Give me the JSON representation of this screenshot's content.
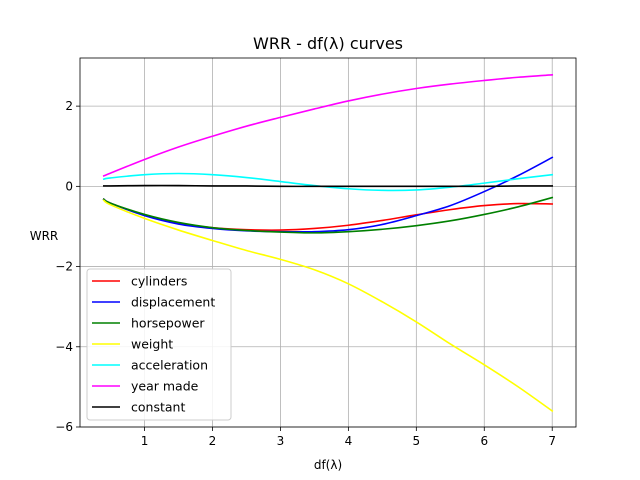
{
  "chart_data": {
    "type": "line",
    "title": "WRR - df(λ) curves",
    "xlabel": "df(λ)",
    "ylabel": "WRR",
    "xlim": [
      0.05,
      7.35
    ],
    "ylim": [
      -6.0,
      3.2
    ],
    "xticks": [
      1,
      2,
      3,
      4,
      5,
      6,
      7
    ],
    "yticks": [
      -6,
      -4,
      -2,
      0,
      2
    ],
    "grid": true,
    "legend_position": "lower-left",
    "x": [
      0.4,
      0.5,
      1.0,
      1.5,
      2.0,
      2.5,
      3.0,
      3.5,
      4.0,
      4.5,
      5.0,
      5.5,
      6.0,
      6.5,
      7.0
    ],
    "series": [
      {
        "name": "cylinders",
        "color": "#ff0000",
        "values": [
          -0.32,
          -0.42,
          -0.72,
          -0.92,
          -1.03,
          -1.08,
          -1.09,
          -1.05,
          -0.97,
          -0.85,
          -0.71,
          -0.58,
          -0.48,
          -0.43,
          -0.44
        ]
      },
      {
        "name": "displacement",
        "color": "#0000ff",
        "values": [
          -0.32,
          -0.42,
          -0.73,
          -0.94,
          -1.05,
          -1.11,
          -1.13,
          -1.13,
          -1.08,
          -0.95,
          -0.73,
          -0.48,
          -0.13,
          0.27,
          0.72
        ]
      },
      {
        "name": "horsepower",
        "color": "#008000",
        "values": [
          -0.32,
          -0.42,
          -0.7,
          -0.9,
          -1.03,
          -1.1,
          -1.14,
          -1.16,
          -1.13,
          -1.07,
          -0.98,
          -0.86,
          -0.7,
          -0.51,
          -0.28
        ]
      },
      {
        "name": "weight",
        "color": "#ffff00",
        "values": [
          -0.35,
          -0.46,
          -0.8,
          -1.09,
          -1.35,
          -1.6,
          -1.82,
          -2.08,
          -2.43,
          -2.88,
          -3.38,
          -3.93,
          -4.45,
          -5.0,
          -5.6
        ]
      },
      {
        "name": "acceleration",
        "color": "#00ffff",
        "values": [
          0.18,
          0.21,
          0.29,
          0.32,
          0.29,
          0.22,
          0.12,
          0.02,
          -0.06,
          -0.1,
          -0.09,
          -0.02,
          0.08,
          0.19,
          0.29
        ]
      },
      {
        "name": "year made",
        "color": "#ff00ff",
        "values": [
          0.26,
          0.33,
          0.67,
          0.98,
          1.25,
          1.5,
          1.72,
          1.93,
          2.13,
          2.3,
          2.44,
          2.55,
          2.64,
          2.72,
          2.78
        ]
      },
      {
        "name": "constant",
        "color": "#000000",
        "values": [
          0.01,
          0.01,
          0.02,
          0.02,
          0.01,
          0.01,
          0.0,
          0.0,
          0.0,
          0.0,
          0.0,
          0.0,
          0.0,
          0.01,
          0.01
        ]
      }
    ]
  }
}
